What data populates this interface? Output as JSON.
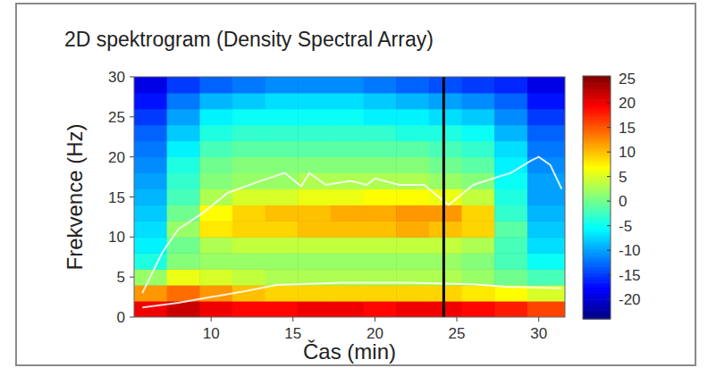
{
  "chart_data": {
    "type": "heatmap",
    "title": "2D spektrogram (Density Spectral Array)",
    "x_label": "Čas (min)",
    "y_label": "Frekvence (Hz)",
    "xlim": [
      5.3,
      31.6
    ],
    "xticks": [
      10,
      15,
      20,
      25,
      30
    ],
    "ylim": [
      0,
      30
    ],
    "yticks": [
      0,
      5,
      10,
      15,
      20,
      25,
      30
    ],
    "x_edges": [
      5.3,
      7.3,
      9.3,
      11.3,
      13.3,
      15.3,
      17.3,
      19.3,
      21.3,
      23.3,
      25.3,
      27.3,
      29.3,
      31.6
    ],
    "y_edges": [
      0,
      2,
      4,
      6,
      8,
      10,
      12,
      14,
      16,
      18,
      20,
      22,
      24,
      26,
      28,
      30
    ],
    "cells": [
      [
        20,
        22,
        20,
        19,
        19,
        20,
        20,
        19,
        20,
        20,
        19,
        18,
        16
      ],
      [
        12,
        14,
        12,
        10,
        9,
        9,
        9,
        9,
        9,
        9,
        8,
        7,
        5
      ],
      [
        2,
        6,
        5,
        4,
        3,
        3,
        3,
        3,
        3,
        3,
        2,
        0,
        -2
      ],
      [
        -4,
        1,
        2,
        2,
        2,
        2,
        2,
        2,
        2,
        2,
        1,
        -2,
        -5
      ],
      [
        -6,
        0,
        3,
        4,
        4,
        4,
        4,
        4,
        4,
        4,
        3,
        -2,
        -7
      ],
      [
        -7,
        2,
        8,
        9,
        9,
        10,
        10,
        10,
        11,
        10,
        9,
        -1,
        -8
      ],
      [
        -8,
        0,
        7,
        9,
        10,
        10,
        11,
        11,
        12,
        12,
        9,
        -3,
        -9
      ],
      [
        -9,
        -2,
        3,
        5,
        5,
        6,
        6,
        7,
        7,
        6,
        4,
        -4,
        -10
      ],
      [
        -10,
        -3,
        1,
        2,
        2,
        3,
        3,
        3,
        3,
        2,
        1,
        -5,
        -10
      ],
      [
        -11,
        -4,
        0,
        1,
        1,
        1,
        1,
        1,
        1,
        0,
        -1,
        -6,
        -11
      ],
      [
        -12,
        -6,
        -2,
        -1,
        -1,
        -1,
        -1,
        -1,
        -1,
        -2,
        -3,
        -7,
        -12
      ],
      [
        -13,
        -8,
        -4,
        -3,
        -3,
        -3,
        -3,
        -3,
        -4,
        -4,
        -5,
        -9,
        -13
      ],
      [
        -15,
        -10,
        -6,
        -5,
        -5,
        -5,
        -5,
        -6,
        -6,
        -7,
        -8,
        -11,
        -15
      ],
      [
        -17,
        -12,
        -9,
        -8,
        -7,
        -7,
        -7,
        -8,
        -9,
        -10,
        -11,
        -13,
        -17
      ],
      [
        -19,
        -15,
        -13,
        -12,
        -11,
        -11,
        -11,
        -12,
        -13,
        -14,
        -15,
        -16,
        -19
      ]
    ],
    "colorbar_range": [
      -24,
      25.5
    ],
    "colorbar_ticks": [
      25,
      20,
      15,
      10,
      5,
      0,
      -5,
      -10,
      -15,
      -20
    ],
    "lines": [
      {
        "color": "#ffffff",
        "x": [
          5.8,
          7,
          8,
          9.5,
          11,
          13,
          14.5,
          15.5,
          16,
          17,
          18.5,
          19.5,
          20,
          21.5,
          23,
          24.2,
          24.5,
          26,
          27.5,
          28.3,
          29.5,
          30,
          30.7,
          31.4
        ],
        "values": [
          3,
          8,
          11,
          13,
          15.5,
          17,
          18,
          16.3,
          18,
          16.5,
          17,
          16.5,
          17.3,
          16.5,
          16.5,
          14.5,
          14,
          16.5,
          17.5,
          18,
          19.5,
          20,
          19,
          16
        ]
      },
      {
        "color": "#ffffff",
        "x": [
          5.8,
          8,
          10,
          12,
          14,
          18,
          22,
          26,
          28,
          31.4
        ],
        "values": [
          1.2,
          1.8,
          2.5,
          3.2,
          4,
          4.3,
          4.3,
          4.1,
          3.8,
          3.6
        ]
      }
    ],
    "marker_line": {
      "x": 24.2,
      "color": "#000000"
    }
  }
}
